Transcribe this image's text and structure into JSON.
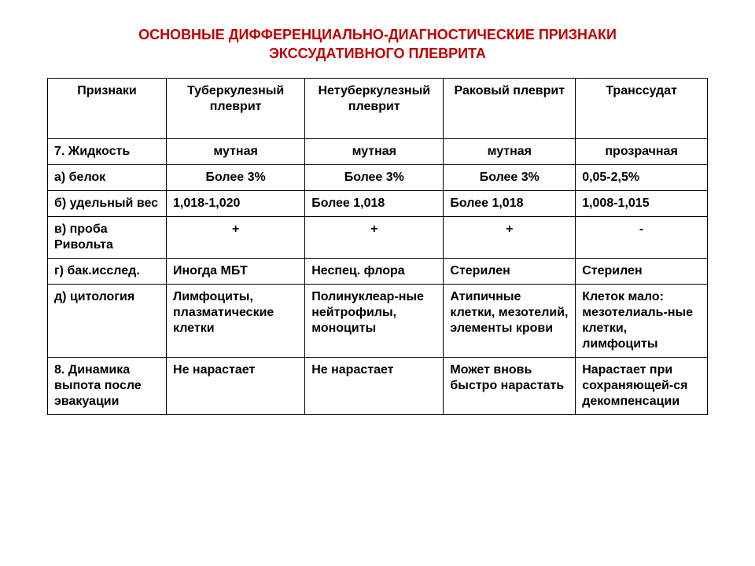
{
  "title": "ОСНОВНЫЕ ДИФФЕРЕНЦИАЛЬНО-ДИАГНОСТИЧЕСКИЕ ПРИЗНАКИ\nЭКССУДАТИВНОГО ПЛЕВРИТА",
  "table": {
    "type": "table",
    "col_widths_pct": [
      18,
      21,
      21,
      20,
      20
    ],
    "header_align": "center",
    "border_color": "#000000",
    "background_color": "#ffffff",
    "title_color": "#c00000",
    "title_fontsize": 18,
    "cell_fontsize": 16,
    "columns": [
      "Признаки",
      "Туберкулезный плеврит",
      "Нетуберкулезный плеврит",
      "Раковый плеврит",
      "Транссудат"
    ],
    "rows": [
      {
        "label": "7. Жидкость",
        "cells": [
          {
            "text": "мутная",
            "bold": true,
            "align": "center"
          },
          {
            "text": "мутная",
            "bold": true,
            "align": "center"
          },
          {
            "text": "мутная",
            "bold": true,
            "align": "center"
          },
          {
            "text": "прозрачная",
            "bold": true,
            "align": "center"
          }
        ]
      },
      {
        "label": "а) белок",
        "cells": [
          {
            "text": "Более 3%",
            "bold": true,
            "align": "center"
          },
          {
            "text": "Более 3%",
            "bold": true,
            "align": "center"
          },
          {
            "text": "Более 3%",
            "bold": true,
            "align": "center"
          },
          {
            "text": "0,05-2,5%",
            "bold": true,
            "align": "left"
          }
        ]
      },
      {
        "label": "б) удельный вес",
        "cells": [
          {
            "text": "1,018-1,020",
            "bold": true,
            "align": "left"
          },
          {
            "text": "Более 1,018",
            "bold": true,
            "align": "left"
          },
          {
            "text": "Более 1,018",
            "bold": true,
            "align": "left"
          },
          {
            "text": "1,008-1,015",
            "bold": true,
            "align": "left"
          }
        ]
      },
      {
        "label": "в) проба Ривольта",
        "cells": [
          {
            "text": "+",
            "bold": true,
            "align": "center"
          },
          {
            "text": "+",
            "bold": true,
            "align": "center"
          },
          {
            "text": "+",
            "bold": true,
            "align": "center"
          },
          {
            "text": "-",
            "bold": true,
            "align": "center"
          }
        ]
      },
      {
        "label": "г) бак.исслед.",
        "cells": [
          {
            "text": "Иногда МБТ",
            "bold": true,
            "align": "left"
          },
          {
            "text": "Неспец. флора",
            "bold": true,
            "align": "left"
          },
          {
            "text": "Стерилен",
            "bold": true,
            "align": "left"
          },
          {
            "text": "Стерилен",
            "bold": true,
            "align": "left"
          }
        ]
      },
      {
        "label": "д) цитология",
        "cells": [
          {
            "text": "Лимфоциты, плазматические клетки",
            "bold": true,
            "align": "left"
          },
          {
            "text": "Полинуклеар-ные нейтрофилы, моноциты",
            "bold": true,
            "align": "left"
          },
          {
            "text": "Атипичные клетки, мезотелий, элементы крови",
            "bold": true,
            "align": "left"
          },
          {
            "text": "Клеток мало: мезотелиаль-ные клетки, лимфоциты",
            "bold": true,
            "align": "left"
          }
        ]
      },
      {
        "label": "8. Динамика выпота после эвакуации",
        "cells": [
          {
            "text": "Не нарастает",
            "bold": true,
            "align": "left"
          },
          {
            "text": "Не нарастает",
            "bold": true,
            "align": "left"
          },
          {
            "text": "Может вновь быстро нарастать",
            "bold": true,
            "align": "left"
          },
          {
            "text": "Нарастает при сохраняющей-ся декомпенсации",
            "bold": true,
            "align": "left"
          }
        ]
      }
    ]
  }
}
